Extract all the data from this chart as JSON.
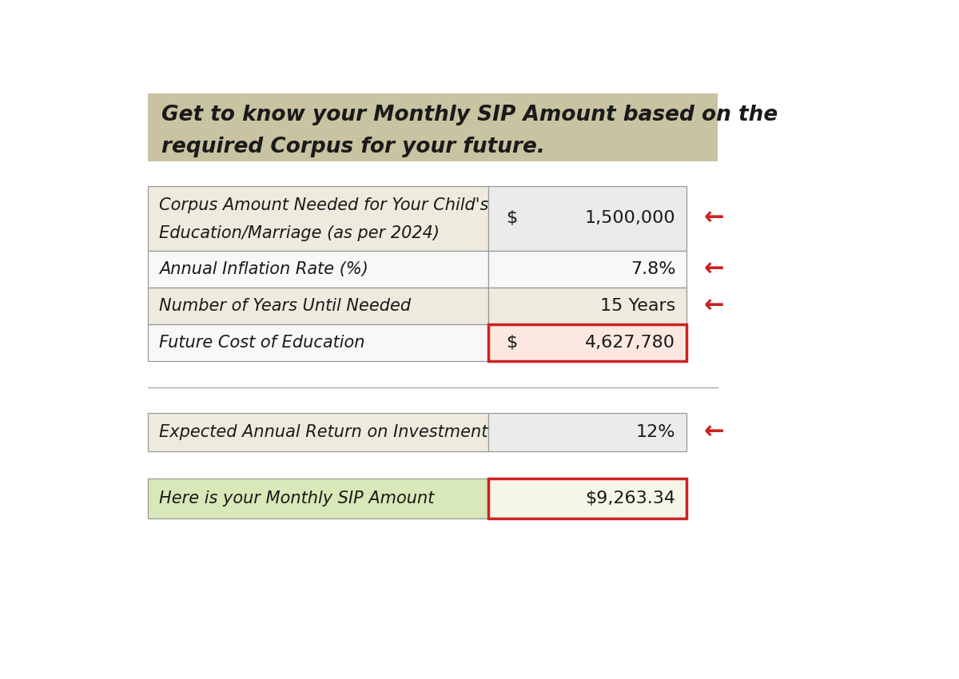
{
  "title_line1": "Get to know your Monthly SIP Amount based on the",
  "title_line2": "required Corpus for your future.",
  "title_bg": "#c8c3a0",
  "title_text_color": "#1a1a1a",
  "bg_color": "#ffffff",
  "rows": [
    {
      "label_line1": "Corpus Amount Needed for Your Child's",
      "label_line2": "Education/Marriage (as per 2024)",
      "value_left": "$",
      "value_right": "1,500,000",
      "label_bg": "#eeeade",
      "value_bg": "#ebebeb",
      "has_arrow": true,
      "highlight_border": false,
      "tall": true
    },
    {
      "label_line1": "Annual Inflation Rate (%)",
      "label_line2": "",
      "value_left": "",
      "value_right": "7.8%",
      "label_bg": "#f8f8f8",
      "value_bg": "#f8f8f8",
      "has_arrow": true,
      "highlight_border": false,
      "tall": false
    },
    {
      "label_line1": "Number of Years Until Needed",
      "label_line2": "",
      "value_left": "",
      "value_right": "15 Years",
      "label_bg": "#eeeade",
      "value_bg": "#eeeade",
      "has_arrow": true,
      "highlight_border": false,
      "tall": false
    },
    {
      "label_line1": "Future Cost of Education",
      "label_line2": "",
      "value_left": "$",
      "value_right": "4,627,780",
      "label_bg": "#f8f8f8",
      "value_bg": "#fce8e0",
      "has_arrow": false,
      "highlight_border": true,
      "tall": false
    }
  ],
  "row_return": {
    "label": "Expected Annual Return on Investment",
    "value_right": "12%",
    "label_bg": "#eeeade",
    "value_bg": "#ebebeb",
    "has_arrow": true
  },
  "row_sip": {
    "label": "Here is your Monthly SIP Amount",
    "value_right": "$9,263.34",
    "label_bg": "#d8e8b8",
    "value_bg": "#f5f5e8",
    "highlight_border": true
  },
  "arrow_color": "#cc2222",
  "border_color": "#cc2222",
  "table_border_color": "#999999",
  "label_font_size": 15,
  "value_font_size": 16,
  "title_font_size": 19
}
